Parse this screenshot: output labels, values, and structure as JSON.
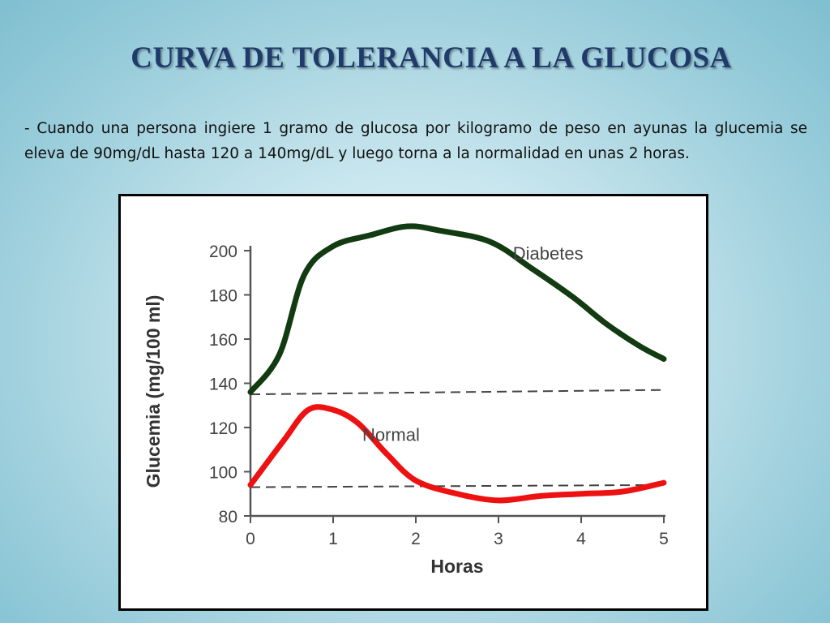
{
  "slide": {
    "title": "CURVA DE TOLERANCIA A LA GLUCOSA",
    "body": "- Cuando una persona ingiere 1 gramo de glucosa por kilogramo de peso en ayunas la glucemia se eleva de 90mg/dL  hasta 120 a 140mg/dL y luego torna a la normalidad en unas 2 horas."
  },
  "colors": {
    "title": "#1f3a6b",
    "diabetes_line": "#123b12",
    "normal_line": "#ee1111",
    "reference_line": "#444444"
  },
  "chart_data": {
    "type": "line",
    "title": "",
    "xlabel": "Horas",
    "ylabel": "Glucemia (mg/100 ml)",
    "xlim": [
      0,
      5
    ],
    "ylim": [
      80,
      200
    ],
    "xticks": [
      0,
      1,
      2,
      3,
      4,
      5
    ],
    "yticks": [
      80,
      100,
      120,
      140,
      160,
      180,
      200
    ],
    "grid": false,
    "series": [
      {
        "name": "Diabetes",
        "color": "#123b12",
        "x": [
          0,
          0.35,
          0.65,
          1.0,
          1.45,
          1.9,
          2.3,
          2.9,
          3.4,
          3.9,
          4.3,
          4.7,
          5.0
        ],
        "y": [
          136,
          153,
          189,
          202,
          207,
          211,
          209,
          204,
          192,
          179,
          167,
          157,
          151
        ]
      },
      {
        "name": "Normal",
        "color": "#ee1111",
        "x": [
          0,
          0.4,
          0.7,
          1.0,
          1.3,
          1.65,
          2.0,
          2.5,
          3.0,
          3.5,
          4.0,
          4.5,
          5.0
        ],
        "y": [
          94,
          114,
          128,
          128,
          122,
          108,
          96,
          90,
          87,
          89,
          90,
          91,
          95
        ]
      }
    ],
    "reference_lines": [
      {
        "y_start": 135,
        "y_end": 137,
        "style": "dashed"
      },
      {
        "y_start": 93,
        "y_end": 94,
        "style": "dashed"
      }
    ]
  }
}
